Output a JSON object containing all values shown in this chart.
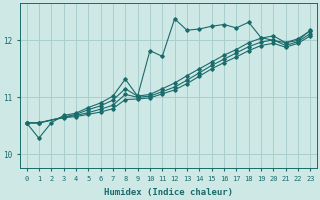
{
  "background_color": "#cde8e5",
  "grid_color": "#aacece",
  "line_color": "#1a6b6b",
  "xlabel": "Humidex (Indice chaleur)",
  "xlim": [
    -0.5,
    23.5
  ],
  "ylim": [
    9.75,
    12.65
  ],
  "yticks": [
    10,
    11,
    12
  ],
  "xticks": [
    0,
    1,
    2,
    3,
    4,
    5,
    6,
    7,
    8,
    9,
    10,
    11,
    12,
    13,
    14,
    15,
    16,
    17,
    18,
    19,
    20,
    21,
    22,
    23
  ],
  "series": [
    {
      "x": [
        0,
        1,
        2,
        3,
        4,
        5,
        6,
        7,
        8,
        9,
        10,
        11,
        12,
        13,
        14,
        15,
        16,
        17,
        18,
        19,
        20,
        21,
        22,
        23
      ],
      "y": [
        10.55,
        10.28,
        10.55,
        10.68,
        10.72,
        10.82,
        10.9,
        11.02,
        11.32,
        11.02,
        11.82,
        11.72,
        12.38,
        12.18,
        12.2,
        12.25,
        12.28,
        12.22,
        12.32,
        12.05,
        12.0,
        11.96,
        12.0,
        12.18
      ]
    },
    {
      "x": [
        0,
        1,
        3,
        4,
        5,
        6,
        7,
        8,
        9,
        10,
        11,
        12,
        13,
        14,
        15,
        16,
        17,
        18,
        19,
        20,
        21,
        22,
        23
      ],
      "y": [
        10.55,
        10.55,
        10.65,
        10.7,
        10.78,
        10.85,
        10.95,
        11.15,
        11.02,
        11.05,
        11.15,
        11.25,
        11.38,
        11.5,
        11.62,
        11.74,
        11.84,
        11.96,
        12.04,
        12.08,
        11.96,
        12.03,
        12.17
      ]
    },
    {
      "x": [
        0,
        1,
        3,
        4,
        5,
        6,
        7,
        8,
        9,
        10,
        11,
        12,
        13,
        14,
        15,
        16,
        17,
        18,
        19,
        20,
        21,
        22,
        23
      ],
      "y": [
        10.55,
        10.55,
        10.65,
        10.68,
        10.73,
        10.79,
        10.86,
        11.05,
        11.0,
        11.02,
        11.1,
        11.18,
        11.3,
        11.43,
        11.56,
        11.67,
        11.78,
        11.89,
        11.97,
        12.01,
        11.91,
        11.98,
        12.12
      ]
    },
    {
      "x": [
        0,
        1,
        3,
        4,
        5,
        6,
        7,
        8,
        9,
        10,
        11,
        12,
        13,
        14,
        15,
        16,
        17,
        18,
        19,
        20,
        21,
        22,
        23
      ],
      "y": [
        10.55,
        10.55,
        10.64,
        10.66,
        10.7,
        10.74,
        10.8,
        10.96,
        10.97,
        10.99,
        11.06,
        11.13,
        11.24,
        11.37,
        11.5,
        11.61,
        11.71,
        11.82,
        11.91,
        11.95,
        11.88,
        11.95,
        12.08
      ]
    }
  ]
}
